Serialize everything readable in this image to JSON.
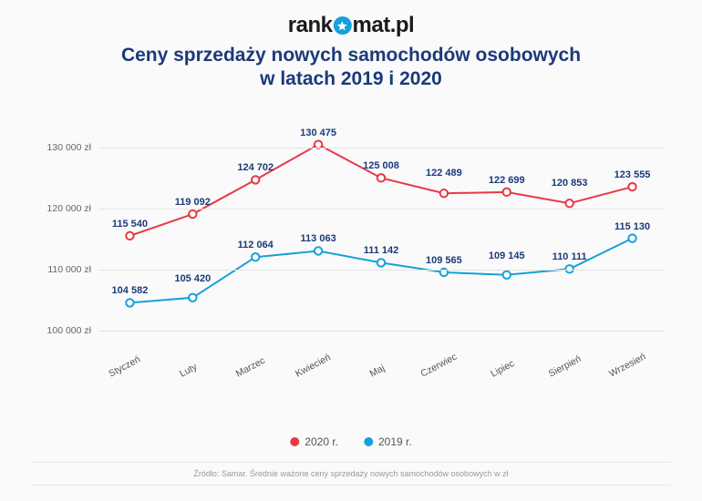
{
  "logo": {
    "prefix": "rank",
    "suffix": "mat.pl"
  },
  "title": {
    "line1": "Ceny sprzedaży nowych samochodów osobowych",
    "line2": "w latach 2019 i 2020",
    "color": "#1b3a7a"
  },
  "chart": {
    "type": "line",
    "background": "#fafafa",
    "grid_color": "#e4e4e4",
    "ylim": [
      96000,
      134000
    ],
    "yticks": [
      100000,
      110000,
      120000,
      130000
    ],
    "ytick_labels": [
      "100 000 zł",
      "110 000 zł",
      "120 000 zł",
      "130 000 zł"
    ],
    "ylabel_color": "#666",
    "categories": [
      "Styczeń",
      "Luty",
      "Marzec",
      "Kwiecień",
      "Maj",
      "Czerwiec",
      "Lipiec",
      "Sierpień",
      "Wrzesień"
    ],
    "series": [
      {
        "name": "2020 r.",
        "color": "#e63946",
        "label_color": "#1b3a7a",
        "marker": "hollow-circle",
        "line_width": 2,
        "values": [
          115540,
          119092,
          124702,
          130475,
          125008,
          122489,
          122699,
          120853,
          123555
        ],
        "labels": [
          "115 540",
          "119 092",
          "124 702",
          "130 475",
          "125 008",
          "122 489",
          "122 699",
          "120 853",
          "123 555"
        ],
        "label_dy": [
          -7,
          -7,
          -7,
          -7,
          -7,
          -16,
          -7,
          -16,
          -7
        ]
      },
      {
        "name": "2019 r.",
        "color": "#14a0db",
        "label_color": "#1b3a7a",
        "marker": "hollow-circle",
        "line_width": 2,
        "values": [
          104582,
          105420,
          112064,
          113063,
          111142,
          109565,
          109145,
          110111,
          115130
        ],
        "labels": [
          "104 582",
          "105 420",
          "112 064",
          "113 063",
          "111 142",
          "109 565",
          "109 145",
          "110 111",
          "115 130"
        ],
        "label_dy": [
          -7,
          -15,
          -7,
          -7,
          -7,
          -7,
          -15,
          -7,
          -7
        ]
      }
    ]
  },
  "legend_items": [
    {
      "label": "2020 r.",
      "color": "#e63946"
    },
    {
      "label": "2019 r.",
      "color": "#14a0db"
    }
  ],
  "source": "Źródło: Samar. Średnie ważone ceny sprzedaży nowych samochodów osobowych w zł"
}
